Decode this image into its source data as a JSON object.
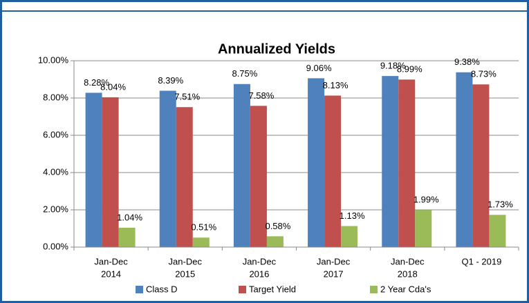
{
  "chart_data": {
    "type": "bar",
    "title": "Annualized Yields",
    "categories": [
      [
        "Jan-Dec",
        "2014"
      ],
      [
        "Jan-Dec",
        "2015"
      ],
      [
        "Jan-Dec",
        "2016"
      ],
      [
        "Jan-Dec",
        "2017"
      ],
      [
        "Jan-Dec",
        "2018"
      ],
      [
        "Q1 - 2019"
      ]
    ],
    "series": [
      {
        "name": "Class D",
        "color": "#4f81bd",
        "values": [
          8.28,
          8.39,
          8.75,
          9.06,
          9.18,
          9.38
        ],
        "value_labels": [
          "8.28%",
          "8.39%",
          "8.75%",
          "9.06%",
          "9.18%",
          "9.38%"
        ]
      },
      {
        "name": "Target Yield",
        "color": "#c0504d",
        "values": [
          8.04,
          7.51,
          7.58,
          8.13,
          8.99,
          8.73
        ],
        "value_labels": [
          "8.04%",
          "7.51%",
          "7.58%",
          "8.13%",
          "8.99%",
          "8.73%"
        ]
      },
      {
        "name": "2 Year Cda's",
        "color": "#9bbb59",
        "values": [
          1.04,
          0.51,
          0.58,
          1.13,
          1.99,
          1.73
        ],
        "value_labels": [
          "1.04%",
          "0.51%",
          "0.58%",
          "1.13%",
          "1.99%",
          "1.73%"
        ]
      }
    ],
    "ylim": [
      0,
      10
    ],
    "yticks": [
      {
        "value": 0,
        "label": "0.00%"
      },
      {
        "value": 2,
        "label": "2.00%"
      },
      {
        "value": 4,
        "label": "4.00%"
      },
      {
        "value": 6,
        "label": "6.00%"
      },
      {
        "value": 8,
        "label": "8.00%"
      },
      {
        "value": 10,
        "label": "10.00%"
      }
    ],
    "grid": true,
    "legend": "bottom"
  }
}
